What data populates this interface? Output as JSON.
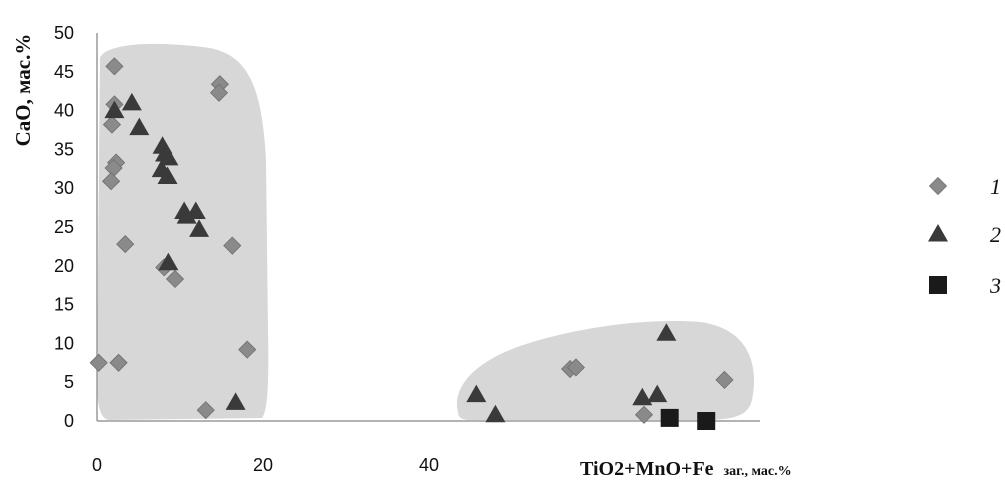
{
  "chart_data": {
    "type": "scatter",
    "title": "",
    "xlabel_main": "TiO2+MnO+Fe",
    "xlabel_sub": "заг., мас.%",
    "ylabel": "CaO, мас.%",
    "xlim": [
      0,
      80
    ],
    "ylim": [
      0,
      50
    ],
    "x_ticks": [
      0,
      20,
      40
    ],
    "y_ticks": [
      0,
      5,
      10,
      15,
      20,
      25,
      30,
      35,
      40,
      45,
      50
    ],
    "grid": false,
    "legend_position": "right",
    "series": [
      {
        "name": "1",
        "marker": "diamond",
        "color": "#8a8a8a",
        "points": [
          [
            0.2,
            7.5
          ],
          [
            2.1,
            45.7
          ],
          [
            2.1,
            40.8
          ],
          [
            1.8,
            38.2
          ],
          [
            2.3,
            33.3
          ],
          [
            2.0,
            32.6
          ],
          [
            1.7,
            30.9
          ],
          [
            3.4,
            22.8
          ],
          [
            2.6,
            7.5
          ],
          [
            8.1,
            19.8
          ],
          [
            9.4,
            18.3
          ],
          [
            14.8,
            43.4
          ],
          [
            14.7,
            42.3
          ],
          [
            16.3,
            22.6
          ],
          [
            18.1,
            9.2
          ],
          [
            13.1,
            1.4
          ],
          [
            57.0,
            6.7
          ],
          [
            57.7,
            6.9
          ],
          [
            65.9,
            0.8
          ],
          [
            75.6,
            5.3
          ]
        ]
      },
      {
        "name": "2",
        "marker": "triangle",
        "color": "#3a3a3a",
        "points": [
          [
            2.1,
            40.0
          ],
          [
            4.2,
            41.0
          ],
          [
            5.1,
            37.8
          ],
          [
            7.9,
            35.4
          ],
          [
            8.2,
            34.4
          ],
          [
            8.6,
            33.9
          ],
          [
            7.8,
            32.4
          ],
          [
            8.5,
            31.5
          ],
          [
            10.5,
            27.0
          ],
          [
            11.9,
            27.0
          ],
          [
            10.8,
            26.4
          ],
          [
            12.3,
            24.7
          ],
          [
            8.6,
            20.4
          ],
          [
            16.7,
            2.4
          ],
          [
            45.7,
            3.4
          ],
          [
            48.0,
            0.8
          ],
          [
            65.7,
            3.0
          ],
          [
            67.5,
            3.4
          ],
          [
            68.6,
            11.3
          ]
        ]
      },
      {
        "name": "3",
        "marker": "square",
        "color": "#1a1a1a",
        "points": [
          [
            69.0,
            0.4
          ],
          [
            73.4,
            0.0
          ]
        ]
      }
    ]
  },
  "legend": {
    "items": [
      {
        "label": "1",
        "marker": "diamond",
        "color": "#8a8a8a"
      },
      {
        "label": "2",
        "marker": "triangle",
        "color": "#3a3a3a"
      },
      {
        "label": "3",
        "marker": "square",
        "color": "#1a1a1a"
      }
    ]
  },
  "colors": {
    "region_fill": "#d7d7d7",
    "axis": "#9a9a9a"
  }
}
